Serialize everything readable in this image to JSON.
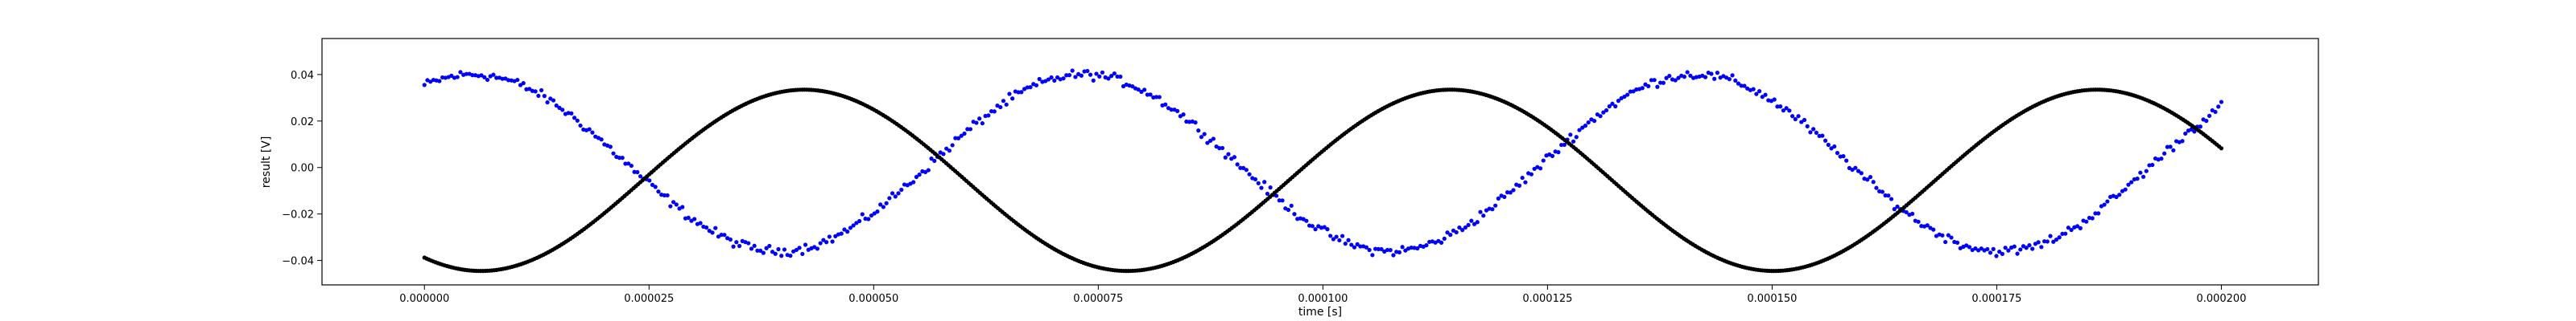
{
  "chart_data": {
    "type": "scatter",
    "title": "",
    "xlabel": "time [s]",
    "ylabel": "result [V]",
    "xlim": [
      -1.14e-05,
      0.0002108
    ],
    "ylim": [
      -0.0505,
      0.0555
    ],
    "grid": false,
    "x_ticks": [
      0,
      2.5e-05,
      5e-05,
      7.5e-05,
      0.0001,
      0.000125,
      0.00015,
      0.000175,
      0.0002
    ],
    "x_tick_labels": [
      "0.000000",
      "0.000025",
      "0.000050",
      "0.000075",
      "0.000100",
      "0.000125",
      "0.000150",
      "0.000175",
      "0.000200"
    ],
    "y_ticks": [
      -0.04,
      -0.02,
      0.0,
      0.02,
      0.04
    ],
    "y_tick_labels": [
      "−0.04",
      "−0.02",
      "0.00",
      "0.02",
      "0.04"
    ],
    "series": [
      {
        "color": "#0000ff",
        "marker": "dot",
        "x_start": 0,
        "x_end": 0.0002,
        "approx_points": 600,
        "form": "sine",
        "amplitude": 0.038,
        "offset": 0.002,
        "frequency_hz": 14700,
        "phase_rad": 1.07,
        "noise_v": 0.003
      },
      {
        "color": "#000000",
        "marker": "dot",
        "x_start": 0,
        "x_end": 0.0002,
        "approx_points": 800,
        "form": "sine",
        "amplitude": 0.039,
        "offset": -0.0055,
        "frequency_hz": 13900,
        "phase_rad": -2.12,
        "noise_v": 0
      }
    ]
  }
}
